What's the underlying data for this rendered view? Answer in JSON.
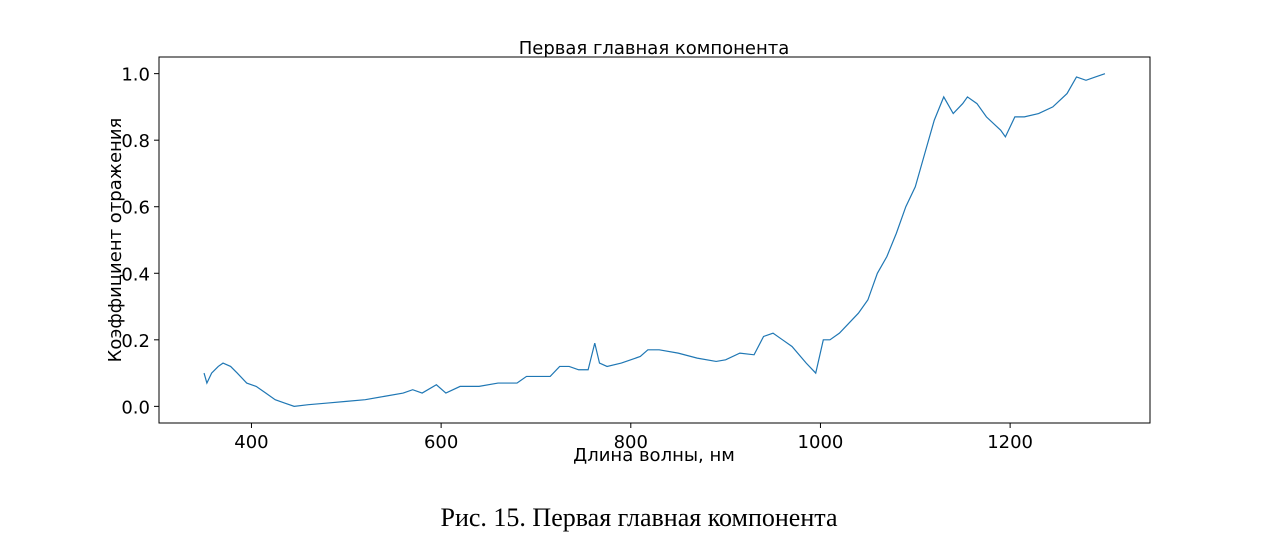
{
  "chart_data": {
    "type": "line",
    "title": "Первая главная компонента",
    "x_label": "Длина волны, нм",
    "y_label": "Коэффициент отражения",
    "x": [
      350,
      353,
      358,
      365,
      370,
      378,
      385,
      395,
      405,
      415,
      425,
      435,
      445,
      460,
      480,
      500,
      520,
      540,
      560,
      570,
      580,
      595,
      605,
      620,
      640,
      660,
      680,
      690,
      700,
      715,
      725,
      735,
      745,
      755,
      762,
      767,
      775,
      790,
      810,
      818,
      830,
      850,
      870,
      890,
      900,
      915,
      930,
      940,
      950,
      960,
      970,
      985,
      995,
      1003,
      1010,
      1020,
      1030,
      1040,
      1050,
      1060,
      1070,
      1080,
      1090,
      1100,
      1110,
      1120,
      1130,
      1140,
      1150,
      1155,
      1165,
      1175,
      1190,
      1195,
      1205,
      1215,
      1230,
      1245,
      1260,
      1270,
      1280,
      1290,
      1300
    ],
    "series": [
      {
        "name": "Первая главная компонента",
        "color": "#1f77b4",
        "values": [
          0.1,
          0.07,
          0.1,
          0.12,
          0.13,
          0.12,
          0.1,
          0.07,
          0.06,
          0.04,
          0.02,
          0.01,
          0.0,
          0.005,
          0.01,
          0.015,
          0.02,
          0.03,
          0.04,
          0.05,
          0.04,
          0.065,
          0.04,
          0.06,
          0.06,
          0.07,
          0.07,
          0.09,
          0.09,
          0.09,
          0.12,
          0.12,
          0.11,
          0.11,
          0.19,
          0.13,
          0.12,
          0.13,
          0.15,
          0.17,
          0.17,
          0.16,
          0.145,
          0.135,
          0.14,
          0.16,
          0.155,
          0.21,
          0.22,
          0.2,
          0.18,
          0.13,
          0.1,
          0.2,
          0.2,
          0.22,
          0.25,
          0.28,
          0.32,
          0.4,
          0.45,
          0.52,
          0.6,
          0.66,
          0.76,
          0.86,
          0.93,
          0.88,
          0.91,
          0.93,
          0.91,
          0.87,
          0.83,
          0.81,
          0.87,
          0.87,
          0.88,
          0.9,
          0.94,
          0.99,
          0.98,
          0.99,
          1.0
        ]
      }
    ],
    "xlim": [
      302.5,
      1347.5
    ],
    "ylim": [
      -0.05,
      1.05
    ],
    "xticks": [
      400,
      600,
      800,
      1000,
      1200
    ],
    "yticks": [
      {
        "value": 0,
        "label": "0.0"
      },
      0.2,
      0.4,
      0.6,
      0.8,
      {
        "value": 1,
        "label": "1.0"
      }
    ],
    "grid": false
  },
  "caption": "Рис. 15. Первая главная компонента"
}
